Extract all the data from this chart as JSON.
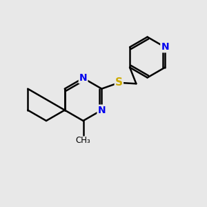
{
  "bg_color": "#e8e8e8",
  "bond_color": "#000000",
  "bond_width": 1.8,
  "atom_colors": {
    "N": "#0000ee",
    "S": "#ccaa00",
    "C": "#000000"
  },
  "font_size_atom": 10,
  "fig_size": [
    3.0,
    3.0
  ],
  "dpi": 100,
  "xlim": [
    0,
    10
  ],
  "ylim": [
    0,
    10
  ]
}
